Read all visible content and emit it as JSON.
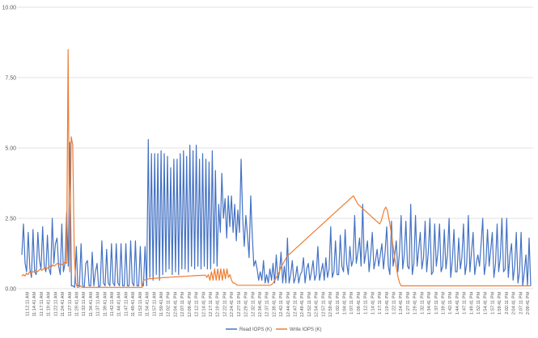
{
  "chart_data": {
    "type": "line",
    "title": "",
    "xlabel": "",
    "ylabel": "",
    "ylim": [
      0,
      10
    ],
    "y_ticks": [
      "0.00",
      "2.50",
      "5.00",
      "7.50",
      "10.00"
    ],
    "grid": "horizontal",
    "legend_position": "bottom",
    "x_tick_labels": [
      "11:12:11 AM",
      "11:14:41 AM",
      "11:17:11 AM",
      "11:19:41 AM",
      "11:22:11 AM",
      "11:24:41 AM",
      "11:27:11 AM",
      "11:29:41 AM",
      "11:32:11 AM",
      "11:34:41 AM",
      "11:37:11 AM",
      "11:39:41 AM",
      "11:42:11 AM",
      "11:44:41 AM",
      "11:47:11 AM",
      "11:49:41 AM",
      "11:52:11 AM",
      "11:54:41 AM",
      "11:57:11 AM",
      "11:59:41 AM",
      "12:02:11 PM",
      "12:04:41 PM",
      "12:07:11 PM",
      "12:09:41 PM",
      "12:12:11 PM",
      "12:14:41 PM",
      "12:17:11 PM",
      "12:19:41 PM",
      "12:22:11 PM",
      "12:24:41 PM",
      "12:27:11 PM",
      "12:29:41 PM",
      "12:32:11 PM",
      "12:34:41 PM",
      "12:37:11 PM",
      "12:39:41 PM",
      "12:42:11 PM",
      "12:44:41 PM",
      "12:47:11 PM",
      "12:49:41 PM",
      "12:52:11 PM",
      "12:54:41 PM",
      "12:57:11 PM",
      "12:59:41 PM",
      "1:02:11 PM",
      "1:04:41 PM",
      "1:07:11 PM",
      "1:09:41 PM",
      "1:12:11 PM",
      "1:14:41 PM",
      "1:17:11 PM",
      "1:19:41 PM",
      "1:22:11 PM",
      "1:24:41 PM",
      "1:27:11 PM",
      "1:29:41 PM",
      "1:32:11 PM",
      "1:34:41 PM",
      "1:37:11 PM",
      "1:39:41 PM",
      "1:42:11 PM",
      "1:44:41 PM",
      "1:47:11 PM",
      "1:49:41 PM",
      "1:52:11 PM",
      "1:54:41 PM",
      "1:57:11 PM",
      "1:59:41 PM",
      "2:02:11 PM",
      "2:04:41 PM",
      "2:07:11 PM",
      "2:09:41 PM"
    ],
    "series": [
      {
        "name": "Read IOPS (K)",
        "color": "#4472c4",
        "values": [
          1.2,
          2.3,
          0.9,
          0.6,
          2.0,
          0.7,
          0.4,
          2.1,
          0.6,
          0.5,
          2.0,
          1.0,
          0.7,
          2.2,
          0.8,
          0.6,
          1.9,
          0.7,
          0.5,
          2.5,
          0.9,
          1.6,
          1.8,
          0.8,
          0.5,
          2.3,
          0.6,
          0.9,
          2.7,
          0.8,
          5.2,
          0.1,
          0.1,
          0.05,
          1.5,
          0.1,
          0.1,
          1.6,
          0.1,
          0.05,
          0.9,
          1.0,
          0.1,
          0.1,
          1.3,
          0.1,
          0.6,
          0.9,
          0.05,
          0.1,
          1.7,
          0.2,
          0.1,
          1.4,
          0.2,
          0.1,
          1.6,
          0.2,
          0.1,
          1.6,
          0.2,
          0.1,
          1.6,
          0.1,
          0.1,
          1.6,
          0.1,
          0.1,
          1.7,
          0.2,
          0.1,
          1.7,
          0.1,
          0.1,
          1.5,
          0.1,
          0.1,
          1.5,
          0.1,
          5.3,
          0.4,
          4.8,
          0.3,
          4.8,
          0.5,
          4.8,
          0.3,
          4.9,
          0.5,
          4.8,
          0.6,
          4.7,
          0.7,
          4.3,
          0.5,
          4.6,
          0.6,
          4.6,
          0.5,
          4.8,
          0.7,
          4.9,
          0.7,
          4.7,
          0.6,
          5.1,
          0.8,
          4.9,
          0.7,
          5.1,
          0.8,
          4.6,
          0.7,
          4.8,
          0.8,
          4.6,
          0.7,
          4.5,
          0.7,
          4.9,
          0.9,
          4.2,
          0.8,
          3.0,
          2.0,
          4.1,
          2.5,
          3.2,
          1.8,
          3.3,
          2.2,
          3.3,
          2.0,
          3.0,
          1.7,
          2.8,
          2.0,
          4.6,
          2.5,
          1.5,
          2.6,
          1.9,
          1.1,
          3.3,
          1.9,
          0.8,
          1.0,
          0.7,
          0.3,
          0.6,
          0.3,
          1.0,
          0.2,
          0.5,
          0.2,
          0.7,
          0.3,
          0.9,
          0.2,
          1.2,
          0.3,
          0.6,
          1.3,
          0.2,
          0.8,
          0.2,
          1.8,
          0.2,
          0.5,
          1.0,
          0.2,
          0.4,
          0.8,
          0.2,
          0.5,
          0.6,
          1.1,
          0.2,
          0.7,
          0.9,
          0.3,
          0.6,
          1.0,
          0.3,
          0.5,
          1.5,
          0.3,
          0.6,
          0.9,
          0.3,
          1.1,
          0.4,
          0.7,
          2.2,
          0.4,
          0.6,
          1.7,
          0.5,
          0.5,
          1.9,
          0.8,
          0.6,
          2.1,
          0.9,
          0.5,
          1.5,
          0.8,
          1.0,
          2.6,
          0.9,
          1.3,
          1.8,
          0.8,
          3.0,
          0.9,
          1.3,
          1.7,
          0.6,
          1.2,
          2.0,
          0.7,
          1.0,
          1.4,
          0.8,
          1.2,
          1.6,
          0.7,
          1.3,
          2.2,
          0.8,
          0.5,
          2.4,
          0.8,
          1.2,
          1.7,
          0.6,
          1.3,
          2.6,
          0.7,
          1.2,
          2.4,
          0.8,
          0.7,
          3.0,
          0.5,
          0.9,
          2.6,
          0.8,
          1.4,
          2.0,
          0.7,
          1.1,
          2.4,
          0.6,
          1.3,
          2.5,
          0.5,
          0.6,
          2.3,
          0.8,
          1.3,
          2.3,
          0.6,
          0.8,
          2.1,
          0.7,
          1.2,
          2.5,
          0.4,
          1.0,
          2.1,
          0.6,
          0.6,
          1.8,
          0.7,
          1.1,
          2.3,
          0.5,
          0.9,
          2.6,
          0.6,
          1.3,
          2.0,
          0.5,
          0.9,
          1.2,
          0.8,
          1.6,
          2.5,
          0.5,
          0.9,
          2.1,
          0.8,
          1.4,
          2.0,
          0.4,
          0.9,
          2.3,
          0.6,
          1.1,
          2.5,
          0.6,
          0.7,
          2.5,
          0.4,
          1.2,
          1.6,
          0.3,
          0.8,
          2.0,
          0.2,
          0.6,
          2.0,
          0.1,
          0.6,
          1.2,
          0.1,
          1.8,
          0.1
        ]
      },
      {
        "name": "Write IOPS (K)",
        "color": "#ed7d31",
        "values": [
          0.45,
          0.5,
          0.45,
          0.55,
          0.5,
          0.6,
          0.55,
          0.6,
          0.6,
          0.65,
          0.6,
          0.65,
          0.7,
          0.65,
          0.7,
          0.75,
          0.7,
          0.75,
          0.8,
          0.75,
          0.85,
          0.8,
          0.85,
          0.9,
          0.85,
          0.9,
          0.85,
          0.9,
          0.95,
          0.9,
          8.5,
          0.6,
          5.4,
          5.1,
          1.2,
          0.2,
          0.05,
          0.05,
          0.1,
          0.05,
          0.05,
          0.05,
          0.05,
          0.05,
          0.05,
          0.05,
          0.05,
          0.05,
          0.05,
          0.05,
          0.05,
          0.05,
          0.05,
          0.05,
          0.05,
          0.05,
          0.05,
          0.05,
          0.05,
          0.05,
          0.05,
          0.05,
          0.05,
          0.05,
          0.05,
          0.05,
          0.05,
          0.05,
          0.05,
          0.05,
          0.05,
          0.05,
          0.05,
          0.05,
          0.05,
          0.05,
          0.05,
          0.05,
          0.05,
          0.3,
          0.32,
          0.33,
          0.35,
          0.35,
          0.36,
          0.36,
          0.37,
          0.37,
          0.38,
          0.38,
          0.38,
          0.39,
          0.39,
          0.4,
          0.4,
          0.4,
          0.41,
          0.41,
          0.41,
          0.42,
          0.42,
          0.42,
          0.43,
          0.43,
          0.43,
          0.44,
          0.44,
          0.44,
          0.45,
          0.45,
          0.45,
          0.46,
          0.46,
          0.46,
          0.47,
          0.47,
          0.47,
          0.48,
          0.48,
          0.48,
          0.4,
          0.5,
          0.3,
          0.6,
          0.3,
          0.7,
          0.3,
          0.7,
          0.3,
          0.7,
          0.3,
          0.7,
          0.35,
          0.7,
          0.4,
          0.5,
          0.3,
          0.2,
          0.2,
          0.15,
          0.12,
          0.12,
          0.12,
          0.12,
          0.12,
          0.12,
          0.12,
          0.12,
          0.12,
          0.12,
          0.12,
          0.12,
          0.12,
          0.12,
          0.12,
          0.12,
          0.12,
          0.12,
          0.12,
          0.12,
          0.12,
          0.12,
          0.15,
          0.2,
          0.3,
          0.4,
          0.5,
          0.6,
          0.75,
          0.85,
          0.95,
          1.05,
          1.15,
          1.2,
          1.25,
          1.3,
          1.35,
          1.4,
          1.45,
          1.5,
          1.55,
          1.6,
          1.65,
          1.7,
          1.75,
          1.8,
          1.85,
          1.9,
          1.95,
          2.0,
          2.05,
          2.1,
          2.15,
          2.2,
          2.25,
          2.3,
          2.35,
          2.4,
          2.45,
          2.5,
          2.55,
          2.6,
          2.65,
          2.7,
          2.75,
          2.8,
          2.85,
          2.9,
          2.95,
          3.0,
          3.05,
          3.1,
          3.15,
          3.2,
          3.25,
          3.3,
          3.2,
          3.1,
          3.0,
          2.95,
          2.9,
          2.85,
          2.8,
          2.75,
          2.7,
          2.65,
          2.6,
          2.55,
          2.5,
          2.45,
          2.4,
          2.35,
          2.3,
          2.4,
          2.6,
          2.8,
          2.9,
          2.8,
          2.5,
          2.2,
          1.8,
          1.4,
          1.0,
          0.7,
          0.4,
          0.2,
          0.1,
          0.1,
          0.1,
          0.1,
          0.1,
          0.1,
          0.1,
          0.1,
          0.1,
          0.1,
          0.1,
          0.1,
          0.1,
          0.1,
          0.1,
          0.1,
          0.1,
          0.1,
          0.1,
          0.1,
          0.1,
          0.1,
          0.1,
          0.1,
          0.1,
          0.1,
          0.1,
          0.1,
          0.1,
          0.1,
          0.1,
          0.1,
          0.1,
          0.1,
          0.1,
          0.1,
          0.1,
          0.1,
          0.1,
          0.1,
          0.1,
          0.1,
          0.1,
          0.1,
          0.1,
          0.1,
          0.1,
          0.1,
          0.1,
          0.1,
          0.1,
          0.1,
          0.1,
          0.1,
          0.1,
          0.1,
          0.1,
          0.1,
          0.1,
          0.1,
          0.1,
          0.1,
          0.1,
          0.1,
          0.1,
          0.1,
          0.1,
          0.1,
          0.1,
          0.1,
          0.1,
          0.1,
          0.1,
          0.1,
          0.1,
          0.1,
          0.1,
          0.1,
          0.1,
          0.1,
          0.1,
          0.1,
          0.1,
          0.1,
          0.1
        ]
      }
    ]
  }
}
